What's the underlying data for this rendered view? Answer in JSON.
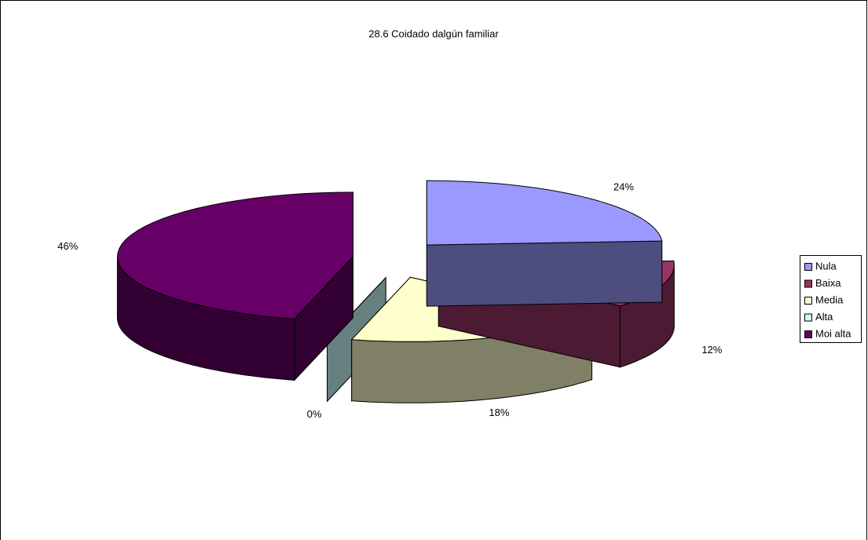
{
  "chart_data": {
    "type": "pie3d",
    "title": "28.6 Coidado dalgún familiar",
    "categories": [
      "Nula",
      "Baixa",
      "Media",
      "Alta",
      "Moi alta"
    ],
    "values": [
      24,
      12,
      18,
      0,
      46
    ],
    "value_labels": [
      "24%",
      "12%",
      "18%",
      "0%",
      "46%"
    ],
    "colors": [
      "#9999ff",
      "#993366",
      "#ffffcc",
      "#ccffff",
      "#660066"
    ]
  }
}
